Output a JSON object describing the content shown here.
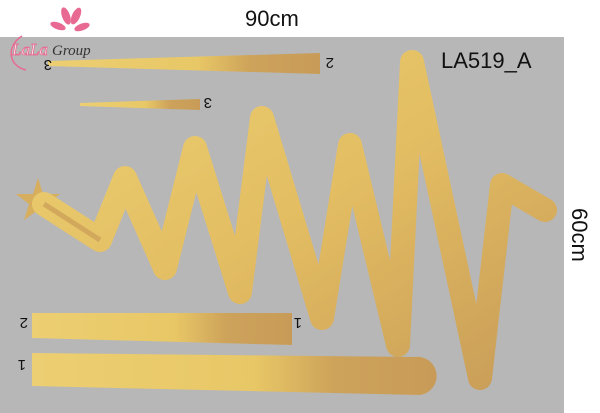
{
  "brand": {
    "logo_text": "LaLaGroup"
  },
  "dimensions": {
    "width": "90cm",
    "height": "60cm"
  },
  "product_code": "LA519_A",
  "piece_labels": {
    "top_strip": "2",
    "top_strip_end": "3",
    "small_strip": "3",
    "bottom_strip_1_left": "2",
    "bottom_strip_1_right": "1",
    "bottom_strip_2_left": "1"
  },
  "colors": {
    "background": "#b7b7b7",
    "gold_light": "#eccf72",
    "gold_dark": "#c89c58",
    "logo_pink": "#e86a92"
  }
}
